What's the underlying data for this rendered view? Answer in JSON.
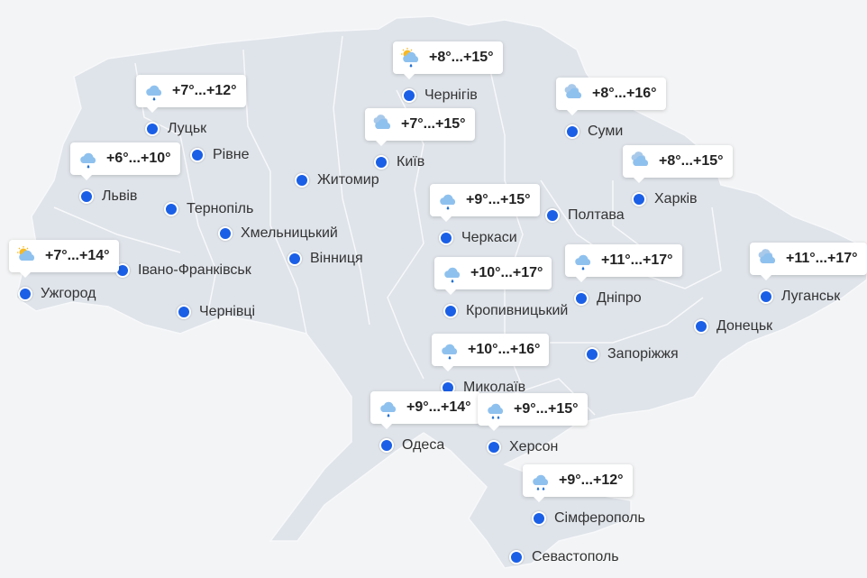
{
  "colors": {
    "land": "#dfe4ea",
    "border": "#f5f7f9",
    "dot": "#1a5fe6",
    "background": "#f3f4f5"
  },
  "cities": [
    {
      "name": "Луцьк"
    },
    {
      "name": "Рівне"
    },
    {
      "name": "Львів"
    },
    {
      "name": "Тернопіль"
    },
    {
      "name": "Хмельницький"
    },
    {
      "name": "Ужгород"
    },
    {
      "name": "Івано-Франківськ"
    },
    {
      "name": "Чернівці"
    },
    {
      "name": "Житомир"
    },
    {
      "name": "Вінниця"
    },
    {
      "name": "Київ"
    },
    {
      "name": "Чернігів"
    },
    {
      "name": "Суми"
    },
    {
      "name": "Черкаси"
    },
    {
      "name": "Полтава"
    },
    {
      "name": "Харків"
    },
    {
      "name": "Кропивницький"
    },
    {
      "name": "Дніпро"
    },
    {
      "name": "Луганськ"
    },
    {
      "name": "Донецьк"
    },
    {
      "name": "Запоріжжя"
    },
    {
      "name": "Миколаїв"
    },
    {
      "name": "Одеса"
    },
    {
      "name": "Херсон"
    },
    {
      "name": "Сімферополь"
    },
    {
      "name": "Севастополь"
    }
  ],
  "forecasts": [
    {
      "city": "Чернігів",
      "temp": "+8°...+15°",
      "icon": "sun-cloud-rain-icon"
    },
    {
      "city": "Луцьк",
      "temp": "+7°...+12°",
      "icon": "cloud-rain-icon"
    },
    {
      "city": "Київ",
      "temp": "+7°...+15°",
      "icon": "clouds-icon"
    },
    {
      "city": "Суми",
      "temp": "+8°...+16°",
      "icon": "clouds-icon"
    },
    {
      "city": "Львів",
      "temp": "+6°...+10°",
      "icon": "cloud-rain-icon"
    },
    {
      "city": "Харків",
      "temp": "+8°...+15°",
      "icon": "clouds-icon"
    },
    {
      "city": "Черкаси",
      "temp": "+9°...+15°",
      "icon": "cloud-rain-icon"
    },
    {
      "city": "Ужгород",
      "temp": "+7°...+14°",
      "icon": "sun-cloud-icon"
    },
    {
      "city": "Кропивницький",
      "temp": "+10°...+17°",
      "icon": "cloud-rain-icon"
    },
    {
      "city": "Дніпро",
      "temp": "+11°...+17°",
      "icon": "cloud-rain-icon"
    },
    {
      "city": "Луганськ",
      "temp": "+11°...+17°",
      "icon": "clouds-icon"
    },
    {
      "city": "Миколаїв",
      "temp": "+10°...+16°",
      "icon": "cloud-rain-icon"
    },
    {
      "city": "Одеса",
      "temp": "+9°...+14°",
      "icon": "cloud-rain-icon"
    },
    {
      "city": "Херсон",
      "temp": "+9°...+15°",
      "icon": "cloud-heavy-rain-icon"
    },
    {
      "city": "Сімферополь",
      "temp": "+9°...+12°",
      "icon": "cloud-heavy-rain-icon"
    }
  ]
}
